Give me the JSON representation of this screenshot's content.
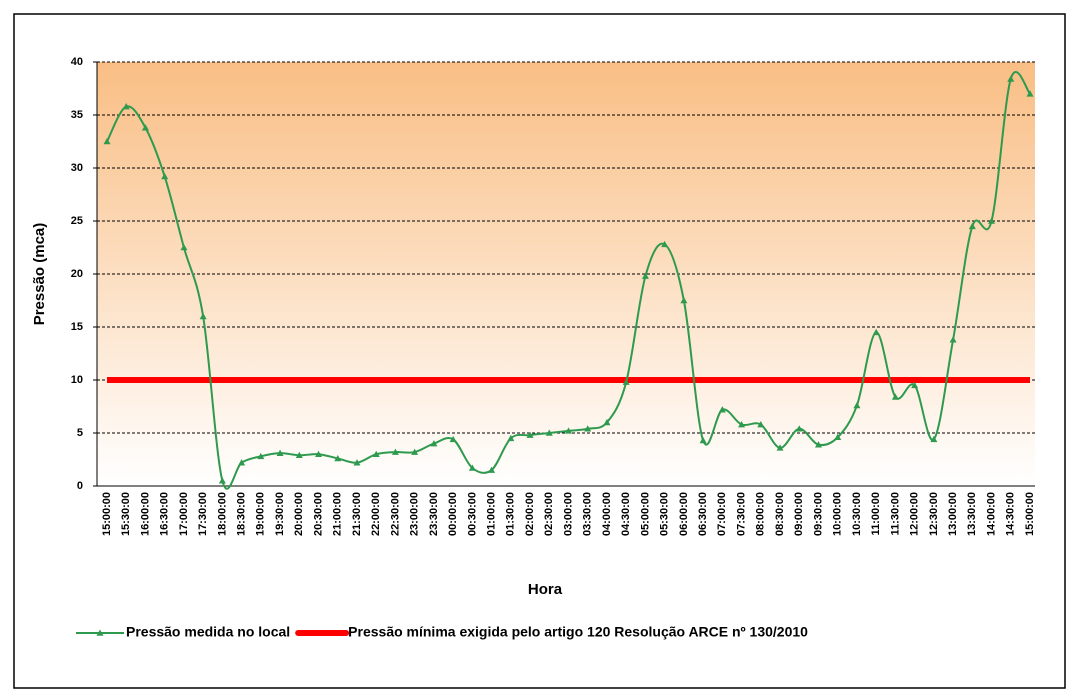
{
  "chart_data": {
    "type": "line",
    "y_label": "Pressão (mca)",
    "x_label": "Hora",
    "categories": [
      "15:00:00",
      "15:30:00",
      "16:00:00",
      "16:30:00",
      "17:00:00",
      "17:30:00",
      "18:00:00",
      "18:30:00",
      "19:00:00",
      "19:30:00",
      "20:00:00",
      "20:30:00",
      "21:00:00",
      "21:30:00",
      "22:00:00",
      "22:30:00",
      "23:00:00",
      "23:30:00",
      "00:00:00",
      "00:30:00",
      "01:00:00",
      "01:30:00",
      "02:00:00",
      "02:30:00",
      "03:00:00",
      "03:30:00",
      "04:00:00",
      "04:30:00",
      "05:00:00",
      "05:30:00",
      "06:00:00",
      "06:30:00",
      "07:00:00",
      "07:30:00",
      "08:00:00",
      "08:30:00",
      "09:00:00",
      "09:30:00",
      "10:00:00",
      "10:30:00",
      "11:00:00",
      "11:30:00",
      "12:00:00",
      "12:30:00",
      "13:00:00",
      "13:30:00",
      "14:00:00",
      "14:30:00",
      "15:00:00"
    ],
    "series": [
      {
        "name": "Pressão medida no local",
        "color": "#2e9a4e",
        "marker": "triangle",
        "smooth": true,
        "values": [
          32.5,
          35.8,
          33.8,
          29.2,
          22.5,
          16,
          0.5,
          2.2,
          2.8,
          3.1,
          2.9,
          3.0,
          2.6,
          2.2,
          3.0,
          3.2,
          3.2,
          4.0,
          4.4,
          1.7,
          1.5,
          4.5,
          4.8,
          5.0,
          5.2,
          5.4,
          6.0,
          9.8,
          19.8,
          22.8,
          17.5,
          4.3,
          7.2,
          5.8,
          5.8,
          3.6,
          5.4,
          3.9,
          4.6,
          7.6,
          14.5,
          8.4,
          9.5,
          4.4,
          13.8,
          24.5,
          25.0,
          38.4,
          37.0
        ]
      },
      {
        "name": "Pressão mínima exigida pelo artigo 120 Resolução ARCE nº 130/2010",
        "color": "#ff0000",
        "marker": "none",
        "smooth": false,
        "values": [
          10,
          10,
          10,
          10,
          10,
          10,
          10,
          10,
          10,
          10,
          10,
          10,
          10,
          10,
          10,
          10,
          10,
          10,
          10,
          10,
          10,
          10,
          10,
          10,
          10,
          10,
          10,
          10,
          10,
          10,
          10,
          10,
          10,
          10,
          10,
          10,
          10,
          10,
          10,
          10,
          10,
          10,
          10,
          10,
          10,
          10,
          10,
          10,
          10
        ]
      }
    ],
    "ylim": [
      0,
      40
    ],
    "yticks": [
      0,
      5,
      10,
      15,
      20,
      25,
      30,
      35,
      40
    ],
    "grid": true,
    "legend": "bottom"
  }
}
